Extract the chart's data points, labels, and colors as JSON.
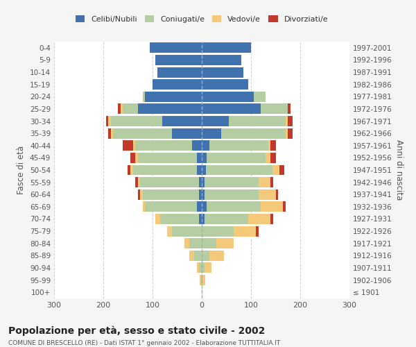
{
  "age_groups": [
    "100+",
    "95-99",
    "90-94",
    "85-89",
    "80-84",
    "75-79",
    "70-74",
    "65-69",
    "60-64",
    "55-59",
    "50-54",
    "45-49",
    "40-44",
    "35-39",
    "30-34",
    "25-29",
    "20-24",
    "15-19",
    "10-14",
    "5-9",
    "0-4"
  ],
  "birth_years": [
    "≤ 1901",
    "1902-1906",
    "1907-1911",
    "1912-1916",
    "1917-1921",
    "1922-1926",
    "1927-1931",
    "1932-1936",
    "1937-1941",
    "1942-1946",
    "1947-1951",
    "1952-1956",
    "1957-1961",
    "1962-1966",
    "1967-1971",
    "1972-1976",
    "1977-1981",
    "1982-1986",
    "1987-1991",
    "1992-1996",
    "1997-2001"
  ],
  "male": {
    "celibi": [
      0,
      0,
      0,
      0,
      0,
      0,
      5,
      10,
      5,
      5,
      10,
      10,
      20,
      60,
      80,
      130,
      115,
      100,
      90,
      95,
      105
    ],
    "coniugati": [
      0,
      2,
      5,
      15,
      25,
      60,
      80,
      105,
      115,
      120,
      130,
      120,
      115,
      120,
      105,
      30,
      5,
      0,
      0,
      0,
      0
    ],
    "vedovi": [
      0,
      2,
      5,
      10,
      10,
      10,
      10,
      5,
      5,
      5,
      5,
      5,
      5,
      5,
      5,
      5,
      0,
      0,
      0,
      0,
      0
    ],
    "divorziati": [
      0,
      0,
      0,
      0,
      0,
      0,
      0,
      0,
      5,
      5,
      5,
      10,
      20,
      5,
      5,
      5,
      0,
      0,
      0,
      0,
      0
    ]
  },
  "female": {
    "nubili": [
      0,
      0,
      0,
      0,
      0,
      0,
      5,
      10,
      5,
      5,
      8,
      10,
      15,
      40,
      55,
      120,
      105,
      95,
      85,
      80,
      100
    ],
    "coniugate": [
      0,
      2,
      5,
      15,
      30,
      65,
      90,
      110,
      110,
      110,
      135,
      120,
      120,
      130,
      115,
      55,
      25,
      0,
      0,
      0,
      0
    ],
    "vedove": [
      0,
      5,
      15,
      30,
      35,
      45,
      45,
      45,
      35,
      25,
      15,
      10,
      5,
      5,
      5,
      0,
      0,
      0,
      0,
      0,
      0
    ],
    "divorziate": [
      0,
      0,
      0,
      0,
      0,
      5,
      5,
      5,
      5,
      5,
      10,
      10,
      10,
      10,
      10,
      5,
      0,
      0,
      0,
      0,
      0
    ]
  },
  "colors": {
    "celibi_nubili": "#3f72af",
    "coniugati": "#b5cda3",
    "vedovi": "#f5c97a",
    "divorziati": "#c0392b"
  },
  "title": "Popolazione per età, sesso e stato civile - 2002",
  "subtitle": "COMUNE DI BRESCELLO (RE) - Dati ISTAT 1° gennaio 2002 - Elaborazione TUTTITALIA.IT",
  "ylabel_left": "Fasce di età",
  "ylabel_right": "Anni di nascita",
  "xlim": 300,
  "bg_color": "#f5f5f5",
  "plot_bg_color": "#ffffff"
}
